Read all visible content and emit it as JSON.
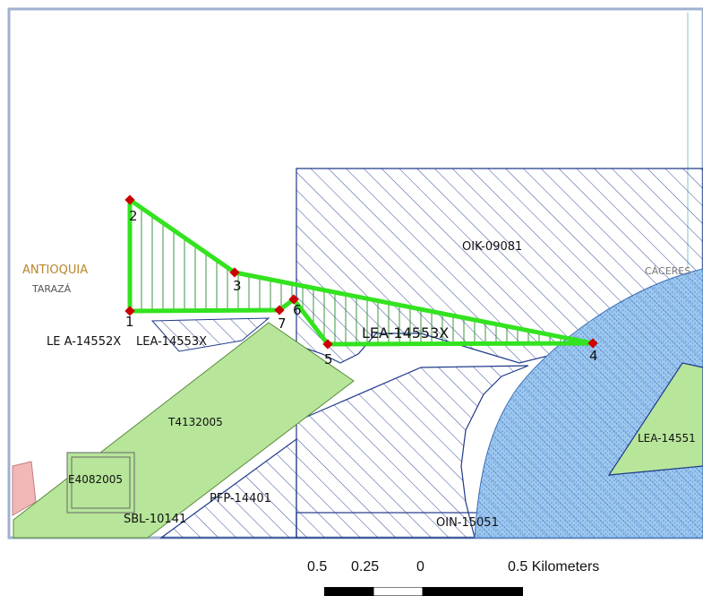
{
  "colors": {
    "frame_border": "#9fb1cf",
    "hatch_blue": "#1f3a8a",
    "outline_blue": "#1f3a8a",
    "claim_green": "#33e31f",
    "vertex_red": "#cc0000",
    "light_green_fill": "#b7e59a",
    "light_blue_fill": "#9cc8f0",
    "pink_fill": "#f2b7b7",
    "teal_line": "#7fc9c9",
    "department_label": "#b8862a",
    "municipality_label": "#555555"
  },
  "map": {
    "department_label": "ANTIOQUIA",
    "municipality_left": "TARAZÁ",
    "municipality_right": "CÁCERES",
    "polygons": {
      "oik": "OIK-09081",
      "oin": "OIN-15051",
      "lea_left_a": "LE A-14552X",
      "lea_left_b": "LEA-14553X",
      "lea_main": "LEA-14553X",
      "lea_right": "LEA-14551",
      "t41": "T4132005",
      "e40": "E4082005",
      "pfp": "PFP-14401",
      "sbl": "SBL-10141"
    },
    "vertices": [
      "1",
      "2",
      "3",
      "4",
      "5",
      "6",
      "7"
    ],
    "vertex_icon": "red-diamond-marker"
  },
  "scale": {
    "tick_a": "0.5",
    "tick_b": "0.25",
    "tick_c": "0",
    "tick_d": "0.5 Kilometers"
  }
}
